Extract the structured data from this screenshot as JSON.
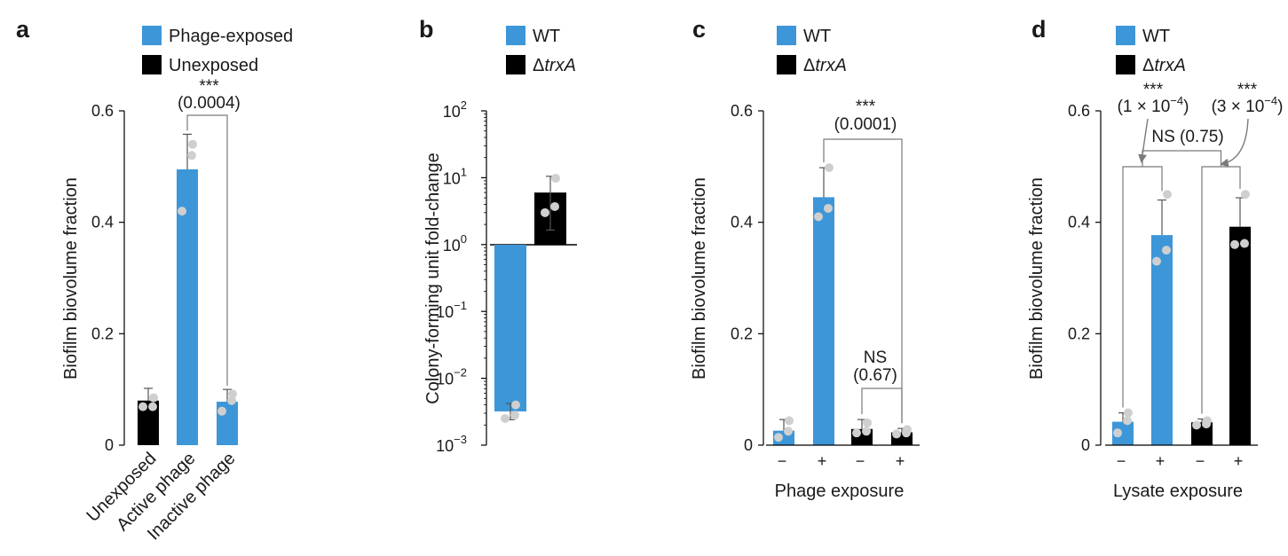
{
  "colors": {
    "blue": "#3d96d8",
    "black": "#000000",
    "dot": "#cfcfcf",
    "err": "#555555",
    "bracket": "#7a7a7a"
  },
  "chart_data": [
    {
      "panel": "a",
      "type": "bar",
      "categories": [
        "Unexposed",
        "Active phage",
        "Inactive phage"
      ],
      "bar_colors": [
        "black",
        "blue",
        "blue"
      ],
      "values": [
        0.08,
        0.495,
        0.078
      ],
      "error_high": [
        0.102,
        0.558,
        0.1
      ],
      "points": [
        [
          0.069,
          0.069,
          0.085
        ],
        [
          0.42,
          0.52,
          0.54
        ],
        [
          0.061,
          0.08,
          0.092
        ]
      ],
      "ylabel": "Biofilm biovolume fraction",
      "ylim": [
        0,
        0.6
      ],
      "yticks": [
        0,
        0.2,
        0.4,
        0.6
      ],
      "ytick_labels": [
        "0",
        "0.2",
        "0.4",
        "0.6"
      ],
      "legend": [
        {
          "label": "Phage-exposed",
          "color": "blue"
        },
        {
          "label": "Unexposed",
          "color": "black"
        }
      ],
      "significance": [
        {
          "stars": "***",
          "p": "(0.0004)",
          "from": 1,
          "to": 2
        }
      ]
    },
    {
      "panel": "b",
      "type": "bar",
      "scale": "log",
      "categories": [
        "WT",
        "ΔtrxA"
      ],
      "bar_colors": [
        "blue",
        "black"
      ],
      "values": [
        0.0032,
        6.0
      ],
      "error_low": [
        0.0024,
        1.65
      ],
      "error_high": [
        0.0042,
        10.5
      ],
      "points": [
        [
          0.0025,
          0.0028,
          0.004
        ],
        [
          3.0,
          3.7,
          9.8
        ]
      ],
      "ylabel": "Colony-forming unit fold-change",
      "ylim": [
        0.001,
        100
      ],
      "ytick_labels": [
        {
          "base": "10",
          "exp": "-3"
        },
        {
          "base": "10",
          "exp": "-2"
        },
        {
          "base": "10",
          "exp": "-1"
        },
        {
          "base": "10",
          "exp": "0"
        },
        {
          "base": "10",
          "exp": "1"
        },
        {
          "base": "10",
          "exp": "2"
        }
      ],
      "legend": [
        {
          "label": "WT",
          "color": "blue",
          "italic": ""
        },
        {
          "label": "Δ",
          "color": "black",
          "italic": "trxA"
        }
      ]
    },
    {
      "panel": "c",
      "type": "bar",
      "categories": [
        "−",
        "+",
        "−",
        "+"
      ],
      "bar_colors": [
        "blue",
        "blue",
        "black",
        "black"
      ],
      "values": [
        0.026,
        0.445,
        0.029,
        0.023
      ],
      "error_high": [
        0.046,
        0.498,
        0.046,
        0.03
      ],
      "points": [
        [
          0.014,
          0.025,
          0.044
        ],
        [
          0.41,
          0.425,
          0.498
        ],
        [
          0.022,
          0.025,
          0.04
        ],
        [
          0.02,
          0.022,
          0.028
        ]
      ],
      "ylabel": "Biofilm biovolume fraction",
      "xlabel": "Phage exposure",
      "ylim": [
        0,
        0.6
      ],
      "yticks": [
        0,
        0.2,
        0.4,
        0.6
      ],
      "ytick_labels": [
        "0",
        "0.2",
        "0.4",
        "0.6"
      ],
      "legend": [
        {
          "label": "WT",
          "color": "blue",
          "italic": ""
        },
        {
          "label": "Δ",
          "color": "black",
          "italic": "trxA"
        }
      ],
      "significance": [
        {
          "stars": "***",
          "p": "(0.0001)",
          "from": 1,
          "to": 3
        },
        {
          "stars": "NS",
          "p": "(0.67)",
          "from": 2,
          "to": 3
        }
      ]
    },
    {
      "panel": "d",
      "type": "bar",
      "categories": [
        "−",
        "+",
        "−",
        "+"
      ],
      "bar_colors": [
        "blue",
        "blue",
        "black",
        "black"
      ],
      "values": [
        0.042,
        0.377,
        0.041,
        0.392
      ],
      "error_high": [
        0.058,
        0.44,
        0.047,
        0.444
      ],
      "points": [
        [
          0.022,
          0.044,
          0.058
        ],
        [
          0.33,
          0.35,
          0.45
        ],
        [
          0.036,
          0.038,
          0.044
        ],
        [
          0.36,
          0.362,
          0.45
        ]
      ],
      "ylabel": "Biofilm biovolume fraction",
      "xlabel": "Lysate exposure",
      "ylim": [
        0,
        0.6
      ],
      "yticks": [
        0,
        0.2,
        0.4,
        0.6
      ],
      "ytick_labels": [
        "0",
        "0.2",
        "0.4",
        "0.6"
      ],
      "legend": [
        {
          "label": "WT",
          "color": "blue",
          "italic": ""
        },
        {
          "label": "Δ",
          "color": "black",
          "italic": "trxA"
        }
      ],
      "significance": [
        {
          "stars": "***",
          "p": "(1 × 10",
          "p_exp": "−4",
          "p_close": ")",
          "from": 0,
          "to": 1
        },
        {
          "stars": "***",
          "p": "(3 × 10",
          "p_exp": "−4",
          "p_close": ")",
          "from": 2,
          "to": 3
        },
        {
          "stars": "NS",
          "p": "(0.75)",
          "from": 1,
          "to": 3
        }
      ]
    }
  ]
}
